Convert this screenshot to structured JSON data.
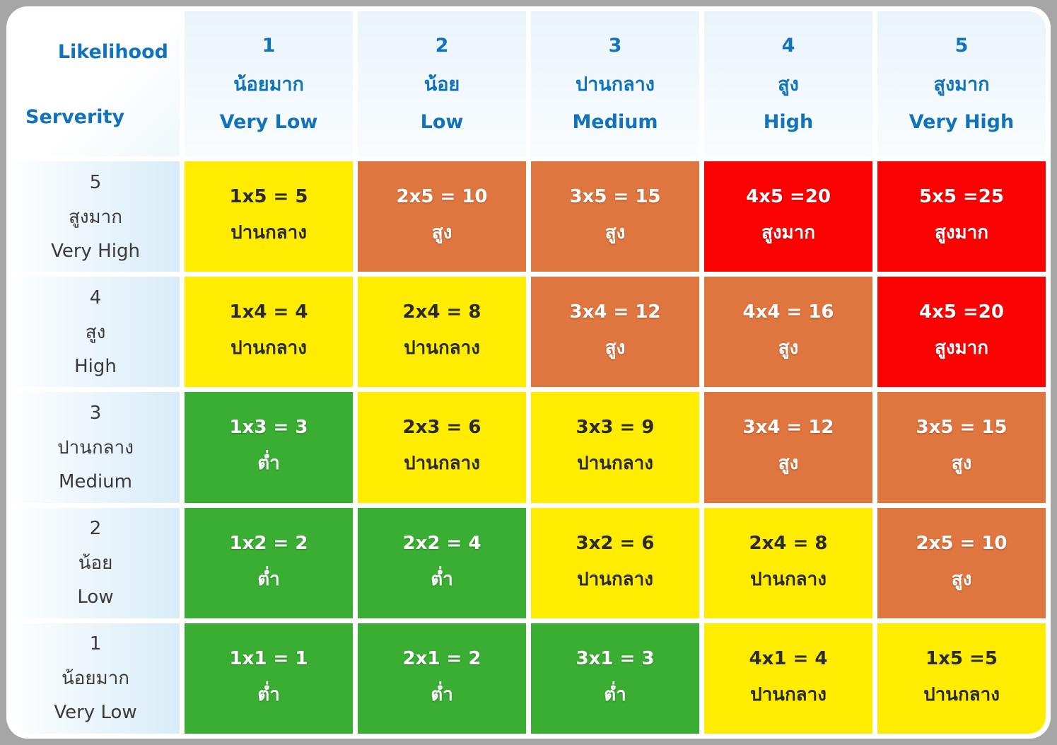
{
  "corner": {
    "likelihood_label": "Likelihood",
    "severity_label": "Serverity"
  },
  "columns": [
    {
      "num": "1",
      "thai": "น้อยมาก",
      "eng": "Very Low"
    },
    {
      "num": "2",
      "thai": "น้อย",
      "eng": "Low"
    },
    {
      "num": "3",
      "thai": "ปานกลาง",
      "eng": "Medium"
    },
    {
      "num": "4",
      "thai": "สูง",
      "eng": "High"
    },
    {
      "num": "5",
      "thai": "สูงมาก",
      "eng": "Very High"
    }
  ],
  "rows": [
    {
      "header": {
        "num": "5",
        "thai": "สูงมาก",
        "eng": "Very High"
      },
      "cells": [
        {
          "formula": "1x5 = 5",
          "level": "ปานกลาง",
          "color": "yellow"
        },
        {
          "formula": "2x5 = 10",
          "level": "สูง",
          "color": "orange"
        },
        {
          "formula": "3x5 = 15",
          "level": "สูง",
          "color": "orange"
        },
        {
          "formula": "4x5 =20",
          "level": "สูงมาก",
          "color": "red"
        },
        {
          "formula": "5x5 =25",
          "level": "สูงมาก",
          "color": "red"
        }
      ]
    },
    {
      "header": {
        "num": "4",
        "thai": "สูง",
        "eng": "High"
      },
      "cells": [
        {
          "formula": "1x4 = 4",
          "level": "ปานกลาง",
          "color": "yellow"
        },
        {
          "formula": "2x4 = 8",
          "level": "ปานกลาง",
          "color": "yellow"
        },
        {
          "formula": "3x4 = 12",
          "level": "สูง",
          "color": "orange"
        },
        {
          "formula": "4x4 = 16",
          "level": "สูง",
          "color": "orange"
        },
        {
          "formula": "4x5 =20",
          "level": "สูงมาก",
          "color": "red"
        }
      ]
    },
    {
      "header": {
        "num": "3",
        "thai": "ปานกลาง",
        "eng": "Medium"
      },
      "cells": [
        {
          "formula": "1x3 = 3",
          "level": "ต่ำ",
          "color": "green"
        },
        {
          "formula": "2x3 = 6",
          "level": "ปานกลาง",
          "color": "yellow"
        },
        {
          "formula": "3x3 = 9",
          "level": "ปานกลาง",
          "color": "yellow"
        },
        {
          "formula": "3x4 = 12",
          "level": "สูง",
          "color": "orange"
        },
        {
          "formula": "3x5 = 15",
          "level": "สูง",
          "color": "orange"
        }
      ]
    },
    {
      "header": {
        "num": "2",
        "thai": "น้อย",
        "eng": "Low"
      },
      "cells": [
        {
          "formula": "1x2 = 2",
          "level": "ต่ำ",
          "color": "green"
        },
        {
          "formula": "2x2 = 4",
          "level": "ต่ำ",
          "color": "green"
        },
        {
          "formula": "3x2 = 6",
          "level": "ปานกลาง",
          "color": "yellow"
        },
        {
          "formula": "2x4 = 8",
          "level": "ปานกลาง",
          "color": "yellow"
        },
        {
          "formula": "2x5 = 10",
          "level": "สูง",
          "color": "orange"
        }
      ]
    },
    {
      "header": {
        "num": "1",
        "thai": "น้อยมาก",
        "eng": "Very Low"
      },
      "cells": [
        {
          "formula": "1x1 = 1",
          "level": "ต่ำ",
          "color": "green"
        },
        {
          "formula": "2x1 = 2",
          "level": "ต่ำ",
          "color": "green"
        },
        {
          "formula": "3x1 = 3",
          "level": "ต่ำ",
          "color": "green"
        },
        {
          "formula": "4x1 = 4",
          "level": "ปานกลาง",
          "color": "yellow"
        },
        {
          "formula": "1x5 =5",
          "level": "ปานกลาง",
          "color": "yellow"
        }
      ]
    }
  ],
  "colors": {
    "yellow": "#ffec00",
    "orange": "#e0763f",
    "red": "#fc0303",
    "green": "#3aae33",
    "header_text_blue": "#1173b9",
    "row_header_text": "#3a3a3a",
    "background_gray": "#a6a6a6"
  }
}
